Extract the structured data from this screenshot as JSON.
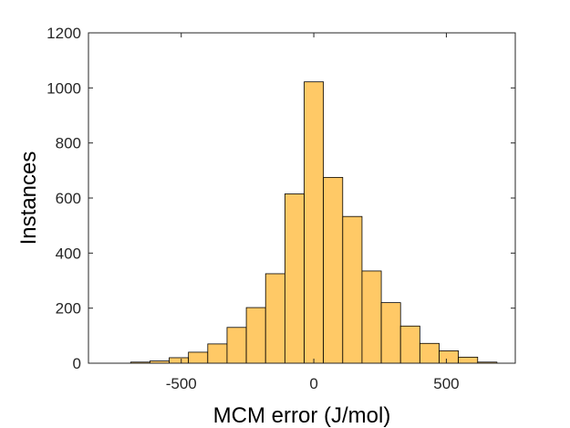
{
  "colors": {
    "bar_fill": "#ffc966",
    "bar_edge": "#000000",
    "axis": "#262626",
    "background": "#ffffff"
  },
  "chart_data": {
    "type": "bar",
    "title": "",
    "xlabel": "MCM error (J/mol)",
    "ylabel": "Instances",
    "xlim": [
      -850,
      760
    ],
    "ylim": [
      0,
      1200
    ],
    "xticks": [
      -500,
      0,
      500
    ],
    "yticks": [
      0,
      200,
      400,
      600,
      800,
      1000,
      1200
    ],
    "grid": false,
    "legend": "none",
    "bin_width": 72.7,
    "bins": [
      {
        "center": -654.5,
        "value": 4
      },
      {
        "center": -581.8,
        "value": 8
      },
      {
        "center": -509.1,
        "value": 20
      },
      {
        "center": -436.4,
        "value": 40
      },
      {
        "center": -363.6,
        "value": 70
      },
      {
        "center": -290.9,
        "value": 130
      },
      {
        "center": -218.2,
        "value": 202
      },
      {
        "center": -145.5,
        "value": 325
      },
      {
        "center": -72.7,
        "value": 615
      },
      {
        "center": 0.0,
        "value": 1022
      },
      {
        "center": 72.7,
        "value": 675
      },
      {
        "center": 145.5,
        "value": 533
      },
      {
        "center": 218.2,
        "value": 335
      },
      {
        "center": 290.9,
        "value": 220
      },
      {
        "center": 363.6,
        "value": 135
      },
      {
        "center": 436.4,
        "value": 72
      },
      {
        "center": 509.1,
        "value": 45
      },
      {
        "center": 581.8,
        "value": 22
      },
      {
        "center": 654.5,
        "value": 4
      }
    ]
  }
}
